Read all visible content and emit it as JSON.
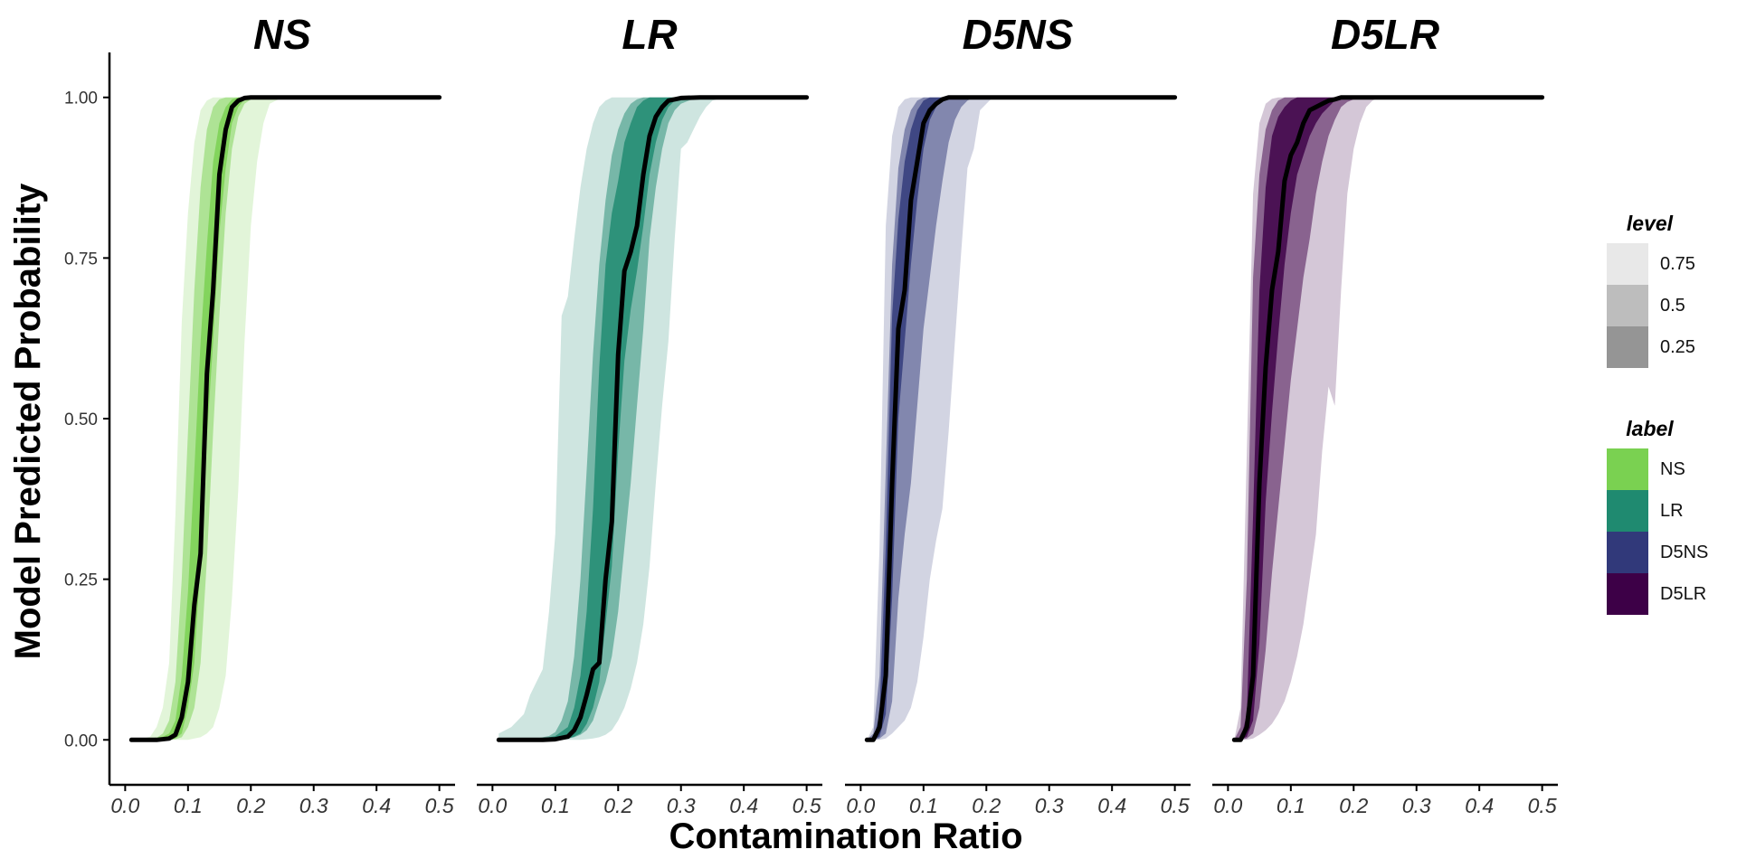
{
  "chart_data": {
    "type": "area",
    "ylabel": "Model Predicted Probability",
    "xlabel": "Contamination Ratio",
    "xlim": [
      -0.025,
      0.525
    ],
    "ylim": [
      -0.07,
      1.07
    ],
    "x_ticks": [
      "0.0",
      "0.1",
      "0.2",
      "0.3",
      "0.4",
      "0.5"
    ],
    "y_ticks": [
      "0.00",
      "0.25",
      "0.50",
      "0.75",
      "1.00"
    ],
    "x_tick_values": [
      0,
      0.1,
      0.2,
      0.3,
      0.4,
      0.5
    ],
    "y_tick_values": [
      0,
      0.25,
      0.5,
      0.75,
      1.0
    ],
    "legend_level_title": "level",
    "legend_level_items": [
      {
        "label": "0.75",
        "color": "#e8e8e8"
      },
      {
        "label": "0.5",
        "color": "#bdbdbd"
      },
      {
        "label": "0.25",
        "color": "#959595"
      }
    ],
    "legend_label_title": "label",
    "legend_label_items": [
      {
        "label": "NS",
        "color": "#7ad151"
      },
      {
        "label": "LR",
        "color": "#1f8a70"
      },
      {
        "label": "D5NS",
        "color": "#31397a"
      },
      {
        "label": "D5LR",
        "color": "#3d0047"
      }
    ],
    "panels": [
      {
        "title": "NS",
        "color": "#7ad151",
        "median_x": [
          0.01,
          0.05,
          0.07,
          0.08,
          0.09,
          0.1,
          0.11,
          0.12,
          0.13,
          0.14,
          0.15,
          0.16,
          0.17,
          0.18,
          0.19,
          0.2,
          0.22,
          0.25,
          0.3,
          0.5
        ],
        "median_y": [
          0,
          0,
          0.002,
          0.008,
          0.035,
          0.09,
          0.21,
          0.29,
          0.57,
          0.7,
          0.88,
          0.95,
          0.985,
          0.995,
          0.999,
          1,
          1,
          1,
          1,
          1
        ],
        "band_25": {
          "x": [
            0.02,
            0.06,
            0.07,
            0.08,
            0.09,
            0.1,
            0.11,
            0.12,
            0.13,
            0.14,
            0.15,
            0.16,
            0.17,
            0.18,
            0.19,
            0.2,
            0.22,
            0.5
          ],
          "lower": [
            0,
            0,
            0,
            0.002,
            0.01,
            0.05,
            0.12,
            0.28,
            0.47,
            0.62,
            0.79,
            0.89,
            0.96,
            0.985,
            0.997,
            1,
            1,
            1
          ],
          "upper": [
            0,
            0.005,
            0.01,
            0.03,
            0.1,
            0.23,
            0.42,
            0.62,
            0.77,
            0.9,
            0.96,
            0.985,
            0.997,
            1,
            1,
            1,
            1,
            1
          ]
        },
        "band_50": {
          "x": [
            0.02,
            0.05,
            0.06,
            0.07,
            0.08,
            0.09,
            0.1,
            0.11,
            0.12,
            0.13,
            0.14,
            0.15,
            0.16,
            0.17,
            0.18,
            0.19,
            0.2,
            0.21,
            0.22,
            0.24,
            0.5
          ],
          "lower": [
            0,
            0,
            0,
            0,
            0.001,
            0.004,
            0.02,
            0.05,
            0.12,
            0.28,
            0.48,
            0.66,
            0.82,
            0.92,
            0.97,
            0.99,
            0.997,
            1,
            1,
            1,
            1
          ],
          "upper": [
            0,
            0.003,
            0.01,
            0.03,
            0.09,
            0.25,
            0.48,
            0.7,
            0.86,
            0.95,
            0.985,
            0.997,
            1,
            1,
            1,
            1,
            1,
            1,
            1,
            1,
            1
          ]
        },
        "band_75": {
          "x": [
            0.02,
            0.04,
            0.05,
            0.06,
            0.07,
            0.08,
            0.09,
            0.1,
            0.11,
            0.12,
            0.13,
            0.14,
            0.15,
            0.16,
            0.17,
            0.18,
            0.19,
            0.2,
            0.21,
            0.22,
            0.23,
            0.24,
            0.25,
            0.27,
            0.5
          ],
          "lower": [
            0,
            0,
            0,
            0,
            0,
            0,
            0,
            0,
            0.002,
            0.004,
            0.01,
            0.02,
            0.05,
            0.1,
            0.22,
            0.39,
            0.62,
            0.8,
            0.9,
            0.96,
            0.99,
            0.995,
            1,
            1,
            1
          ],
          "upper": [
            0,
            0.005,
            0.02,
            0.05,
            0.12,
            0.35,
            0.65,
            0.82,
            0.93,
            0.98,
            0.995,
            1,
            1,
            1,
            1,
            1,
            1,
            1,
            1,
            1,
            1,
            1,
            1,
            1,
            1
          ]
        }
      },
      {
        "title": "LR",
        "color": "#1f8a70",
        "median_x": [
          0.01,
          0.08,
          0.1,
          0.12,
          0.13,
          0.14,
          0.15,
          0.16,
          0.17,
          0.18,
          0.19,
          0.2,
          0.21,
          0.22,
          0.23,
          0.24,
          0.25,
          0.26,
          0.27,
          0.28,
          0.3,
          0.33,
          0.5
        ],
        "median_y": [
          0,
          0,
          0.001,
          0.005,
          0.015,
          0.035,
          0.07,
          0.11,
          0.12,
          0.25,
          0.34,
          0.6,
          0.73,
          0.76,
          0.8,
          0.88,
          0.94,
          0.97,
          0.985,
          0.995,
          0.999,
          1,
          1
        ],
        "band_25": {
          "x": [
            0.04,
            0.08,
            0.1,
            0.12,
            0.13,
            0.14,
            0.15,
            0.16,
            0.17,
            0.18,
            0.19,
            0.2,
            0.21,
            0.22,
            0.23,
            0.24,
            0.25,
            0.26,
            0.27,
            0.28,
            0.29,
            0.3,
            0.32,
            0.5
          ],
          "lower": [
            0,
            0,
            0,
            0.002,
            0.005,
            0.01,
            0.025,
            0.05,
            0.09,
            0.18,
            0.27,
            0.45,
            0.59,
            0.67,
            0.73,
            0.8,
            0.88,
            0.93,
            0.965,
            0.985,
            0.995,
            1,
            1,
            1
          ],
          "upper": [
            0,
            0.002,
            0.006,
            0.02,
            0.05,
            0.1,
            0.2,
            0.36,
            0.58,
            0.74,
            0.82,
            0.87,
            0.93,
            0.96,
            0.985,
            0.995,
            1,
            1,
            1,
            1,
            1,
            1,
            1,
            1
          ]
        },
        "band_50": {
          "x": [
            0.03,
            0.07,
            0.09,
            0.1,
            0.11,
            0.12,
            0.13,
            0.14,
            0.15,
            0.16,
            0.17,
            0.18,
            0.19,
            0.2,
            0.21,
            0.22,
            0.23,
            0.24,
            0.25,
            0.26,
            0.27,
            0.28,
            0.29,
            0.3,
            0.32,
            0.34,
            0.36,
            0.5
          ],
          "lower": [
            0,
            0,
            0,
            0,
            0.001,
            0.002,
            0.004,
            0.008,
            0.015,
            0.03,
            0.06,
            0.09,
            0.13,
            0.2,
            0.3,
            0.4,
            0.52,
            0.64,
            0.78,
            0.86,
            0.92,
            0.96,
            0.98,
            0.99,
            0.998,
            1,
            1,
            1
          ],
          "upper": [
            0,
            0.002,
            0.006,
            0.012,
            0.03,
            0.06,
            0.13,
            0.25,
            0.42,
            0.6,
            0.74,
            0.84,
            0.91,
            0.95,
            0.975,
            0.99,
            0.997,
            1,
            1,
            1,
            1,
            1,
            1,
            1,
            1,
            1,
            1,
            1
          ]
        },
        "band_75": {
          "x": [
            0.01,
            0.03,
            0.05,
            0.06,
            0.08,
            0.09,
            0.1,
            0.11,
            0.12,
            0.13,
            0.14,
            0.15,
            0.16,
            0.17,
            0.18,
            0.19,
            0.2,
            0.21,
            0.22,
            0.23,
            0.24,
            0.25,
            0.26,
            0.27,
            0.28,
            0.29,
            0.3,
            0.31,
            0.32,
            0.33,
            0.34,
            0.35,
            0.37,
            0.4,
            0.5
          ],
          "lower": [
            0,
            0,
            0,
            0,
            0,
            0,
            0,
            0,
            0,
            0,
            0,
            0.001,
            0.002,
            0.004,
            0.008,
            0.015,
            0.03,
            0.05,
            0.08,
            0.12,
            0.18,
            0.27,
            0.4,
            0.52,
            0.62,
            0.78,
            0.92,
            0.93,
            0.95,
            0.97,
            0.985,
            0.995,
            1,
            1,
            1
          ],
          "upper": [
            0.01,
            0.02,
            0.04,
            0.07,
            0.11,
            0.2,
            0.32,
            0.66,
            0.69,
            0.78,
            0.86,
            0.92,
            0.96,
            0.985,
            0.995,
            1,
            1,
            1,
            1,
            1,
            1,
            1,
            1,
            1,
            1,
            1,
            1,
            1,
            1,
            1,
            1,
            1,
            1,
            1,
            1
          ]
        }
      },
      {
        "title": "D5NS",
        "color": "#31397a",
        "median_x": [
          0.01,
          0.02,
          0.03,
          0.04,
          0.05,
          0.06,
          0.07,
          0.08,
          0.09,
          0.1,
          0.11,
          0.12,
          0.13,
          0.14,
          0.16,
          0.2,
          0.5
        ],
        "median_y": [
          0,
          0,
          0.02,
          0.1,
          0.4,
          0.64,
          0.7,
          0.84,
          0.9,
          0.96,
          0.98,
          0.99,
          0.997,
          1,
          1,
          1,
          1
        ],
        "band_25": {
          "x": [
            0.02,
            0.03,
            0.04,
            0.05,
            0.06,
            0.07,
            0.08,
            0.09,
            0.1,
            0.11,
            0.12,
            0.13,
            0.14,
            0.16,
            0.5
          ],
          "lower": [
            0,
            0.005,
            0.04,
            0.22,
            0.5,
            0.62,
            0.74,
            0.84,
            0.92,
            0.965,
            0.985,
            0.995,
            1,
            1,
            1
          ],
          "upper": [
            0,
            0.04,
            0.3,
            0.66,
            0.81,
            0.9,
            0.95,
            0.98,
            0.995,
            1,
            1,
            1,
            1,
            1,
            1
          ]
        },
        "band_50": {
          "x": [
            0.01,
            0.02,
            0.03,
            0.04,
            0.05,
            0.06,
            0.07,
            0.08,
            0.09,
            0.1,
            0.11,
            0.12,
            0.13,
            0.14,
            0.15,
            0.16,
            0.17,
            0.18,
            0.5
          ],
          "lower": [
            0,
            0,
            0.002,
            0.01,
            0.06,
            0.22,
            0.32,
            0.4,
            0.52,
            0.64,
            0.72,
            0.8,
            0.87,
            0.93,
            0.965,
            0.985,
            0.995,
            1,
            1
          ],
          "upper": [
            0,
            0.01,
            0.1,
            0.42,
            0.74,
            0.89,
            0.95,
            0.98,
            0.995,
            1,
            1,
            1,
            1,
            1,
            1,
            1,
            1,
            1,
            1
          ]
        },
        "band_75": {
          "x": [
            0.01,
            0.02,
            0.03,
            0.04,
            0.05,
            0.06,
            0.07,
            0.08,
            0.09,
            0.1,
            0.11,
            0.12,
            0.13,
            0.14,
            0.15,
            0.16,
            0.17,
            0.18,
            0.19,
            0.21,
            0.5
          ],
          "lower": [
            0,
            0,
            0,
            0.002,
            0.01,
            0.02,
            0.03,
            0.05,
            0.09,
            0.16,
            0.25,
            0.31,
            0.36,
            0.48,
            0.62,
            0.76,
            0.89,
            0.92,
            0.98,
            1,
            1
          ],
          "upper": [
            0,
            0.02,
            0.3,
            0.8,
            0.94,
            0.985,
            0.997,
            1,
            1,
            1,
            1,
            1,
            1,
            1,
            1,
            1,
            1,
            1,
            1,
            1,
            1
          ]
        }
      },
      {
        "title": "D5LR",
        "color": "#3d0047",
        "median_x": [
          0.01,
          0.02,
          0.03,
          0.04,
          0.05,
          0.06,
          0.07,
          0.08,
          0.09,
          0.1,
          0.11,
          0.12,
          0.13,
          0.14,
          0.15,
          0.16,
          0.17,
          0.18,
          0.19,
          0.21,
          0.5
        ],
        "median_y": [
          0,
          0,
          0.02,
          0.1,
          0.4,
          0.58,
          0.7,
          0.76,
          0.87,
          0.91,
          0.93,
          0.96,
          0.98,
          0.985,
          0.99,
          0.995,
          0.997,
          1,
          1,
          1,
          1
        ],
        "band_25": {
          "x": [
            0.02,
            0.03,
            0.04,
            0.05,
            0.06,
            0.07,
            0.08,
            0.09,
            0.1,
            0.11,
            0.12,
            0.13,
            0.14,
            0.15,
            0.16,
            0.17,
            0.18,
            0.2,
            0.5
          ],
          "lower": [
            0,
            0.005,
            0.03,
            0.15,
            0.37,
            0.51,
            0.63,
            0.74,
            0.82,
            0.88,
            0.91,
            0.94,
            0.96,
            0.975,
            0.985,
            0.995,
            1,
            1,
            1
          ],
          "upper": [
            0,
            0.04,
            0.35,
            0.7,
            0.86,
            0.94,
            0.97,
            0.985,
            0.995,
            1,
            1,
            1,
            1,
            1,
            1,
            1,
            1,
            1,
            1
          ]
        },
        "band_50": {
          "x": [
            0.01,
            0.02,
            0.03,
            0.04,
            0.05,
            0.06,
            0.07,
            0.08,
            0.09,
            0.1,
            0.11,
            0.12,
            0.13,
            0.14,
            0.15,
            0.16,
            0.17,
            0.18,
            0.19,
            0.2,
            0.21,
            0.22,
            0.5
          ],
          "lower": [
            0,
            0,
            0.002,
            0.01,
            0.05,
            0.14,
            0.26,
            0.36,
            0.46,
            0.56,
            0.64,
            0.72,
            0.78,
            0.85,
            0.9,
            0.94,
            0.965,
            0.985,
            0.993,
            0.997,
            1,
            1,
            1
          ],
          "upper": [
            0,
            0.02,
            0.25,
            0.72,
            0.88,
            0.95,
            0.98,
            0.995,
            1,
            1,
            1,
            1,
            1,
            1,
            1,
            1,
            1,
            1,
            1,
            1,
            1,
            1,
            1
          ]
        },
        "band_75": {
          "x": [
            0.01,
            0.02,
            0.03,
            0.04,
            0.05,
            0.06,
            0.07,
            0.08,
            0.09,
            0.1,
            0.11,
            0.12,
            0.13,
            0.14,
            0.15,
            0.16,
            0.17,
            0.18,
            0.19,
            0.2,
            0.21,
            0.22,
            0.23,
            0.24,
            0.5
          ],
          "lower": [
            0,
            0,
            0,
            0.002,
            0.008,
            0.015,
            0.025,
            0.04,
            0.06,
            0.09,
            0.13,
            0.18,
            0.25,
            0.32,
            0.45,
            0.55,
            0.52,
            0.7,
            0.85,
            0.92,
            0.96,
            0.985,
            0.995,
            1,
            1
          ],
          "upper": [
            0,
            0.05,
            0.45,
            0.85,
            0.96,
            0.99,
            0.998,
            1,
            1,
            1,
            1,
            1,
            1,
            1,
            1,
            1,
            1,
            1,
            1,
            1,
            1,
            1,
            1,
            1,
            1
          ]
        }
      }
    ]
  }
}
